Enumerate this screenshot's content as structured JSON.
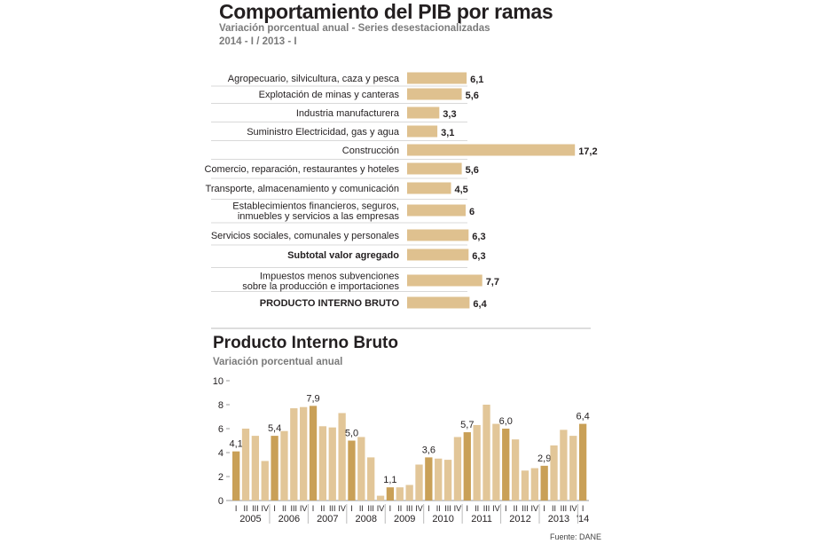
{
  "chart_data": [
    {
      "type": "bar",
      "orientation": "horizontal",
      "title": "Comportamiento del PIB por ramas",
      "subtitle": "Variación porcentual anual - Series desestacionalizadas",
      "subtitle2": "2014 - I / 2013 - I",
      "categories": [
        "Agropecuario, silvicultura, caza y pesca",
        "Explotación de minas y canteras",
        "Industria manufacturera",
        "Suministro Electricidad, gas y agua",
        "Construcción",
        "Comercio, reparación, restaurantes y hoteles",
        "Transporte, almacenamiento y comunicación",
        "Establecimientos financieros, seguros,\ninmuebles y servicios a las empresas",
        "Servicios sociales, comunales y personales",
        "Subtotal valor agregado",
        "Impuestos menos subvenciones\nsobre la producción e importaciones",
        "PRODUCTO INTERNO BRUTO"
      ],
      "bold": [
        false,
        false,
        false,
        false,
        false,
        false,
        false,
        false,
        false,
        true,
        false,
        true
      ],
      "values": [
        6.1,
        5.6,
        3.3,
        3.1,
        17.2,
        5.6,
        4.5,
        6,
        6.3,
        6.3,
        7.7,
        6.4
      ],
      "value_labels": [
        "6,1",
        "5,6",
        "3,3",
        "3,1",
        "17,2",
        "5,6",
        "4,5",
        "6",
        "6,3",
        "6,3",
        "7,7",
        "6,4"
      ],
      "bar_color": "#dfc18f"
    },
    {
      "type": "bar",
      "title": "Producto Interno Bruto",
      "subtitle": "Variación porcentual anual",
      "ylim": [
        0,
        10
      ],
      "yticks": [
        "0",
        "2",
        "4",
        "6",
        "8",
        "10"
      ],
      "years": [
        "2005",
        "2006",
        "2007",
        "2008",
        "2009",
        "2010",
        "2011",
        "2012",
        "2013",
        "'14"
      ],
      "quarters": [
        "I",
        "II",
        "III",
        "IV"
      ],
      "values": [
        4.1,
        6.0,
        5.4,
        3.3,
        5.4,
        5.8,
        7.7,
        7.8,
        7.9,
        6.2,
        6.1,
        7.3,
        5.0,
        5.3,
        3.6,
        0.4,
        1.1,
        1.1,
        1.3,
        3.0,
        3.6,
        3.5,
        3.4,
        5.3,
        5.7,
        6.3,
        8.0,
        6.4,
        6.0,
        5.1,
        2.5,
        2.7,
        2.9,
        4.6,
        5.9,
        5.4,
        6.4
      ],
      "data_labels": {
        "0": "4,1",
        "4": "5,4",
        "8": "7,9",
        "12": "5,0",
        "16": "1,1",
        "20": "3,6",
        "24": "5,7",
        "28": "6,0",
        "32": "2,9",
        "36": "6,4"
      },
      "colors": {
        "first_quarter": "#c9a057",
        "other_quarters": "#e2c698"
      },
      "grid": false,
      "source": "Fuente: DANE"
    }
  ]
}
